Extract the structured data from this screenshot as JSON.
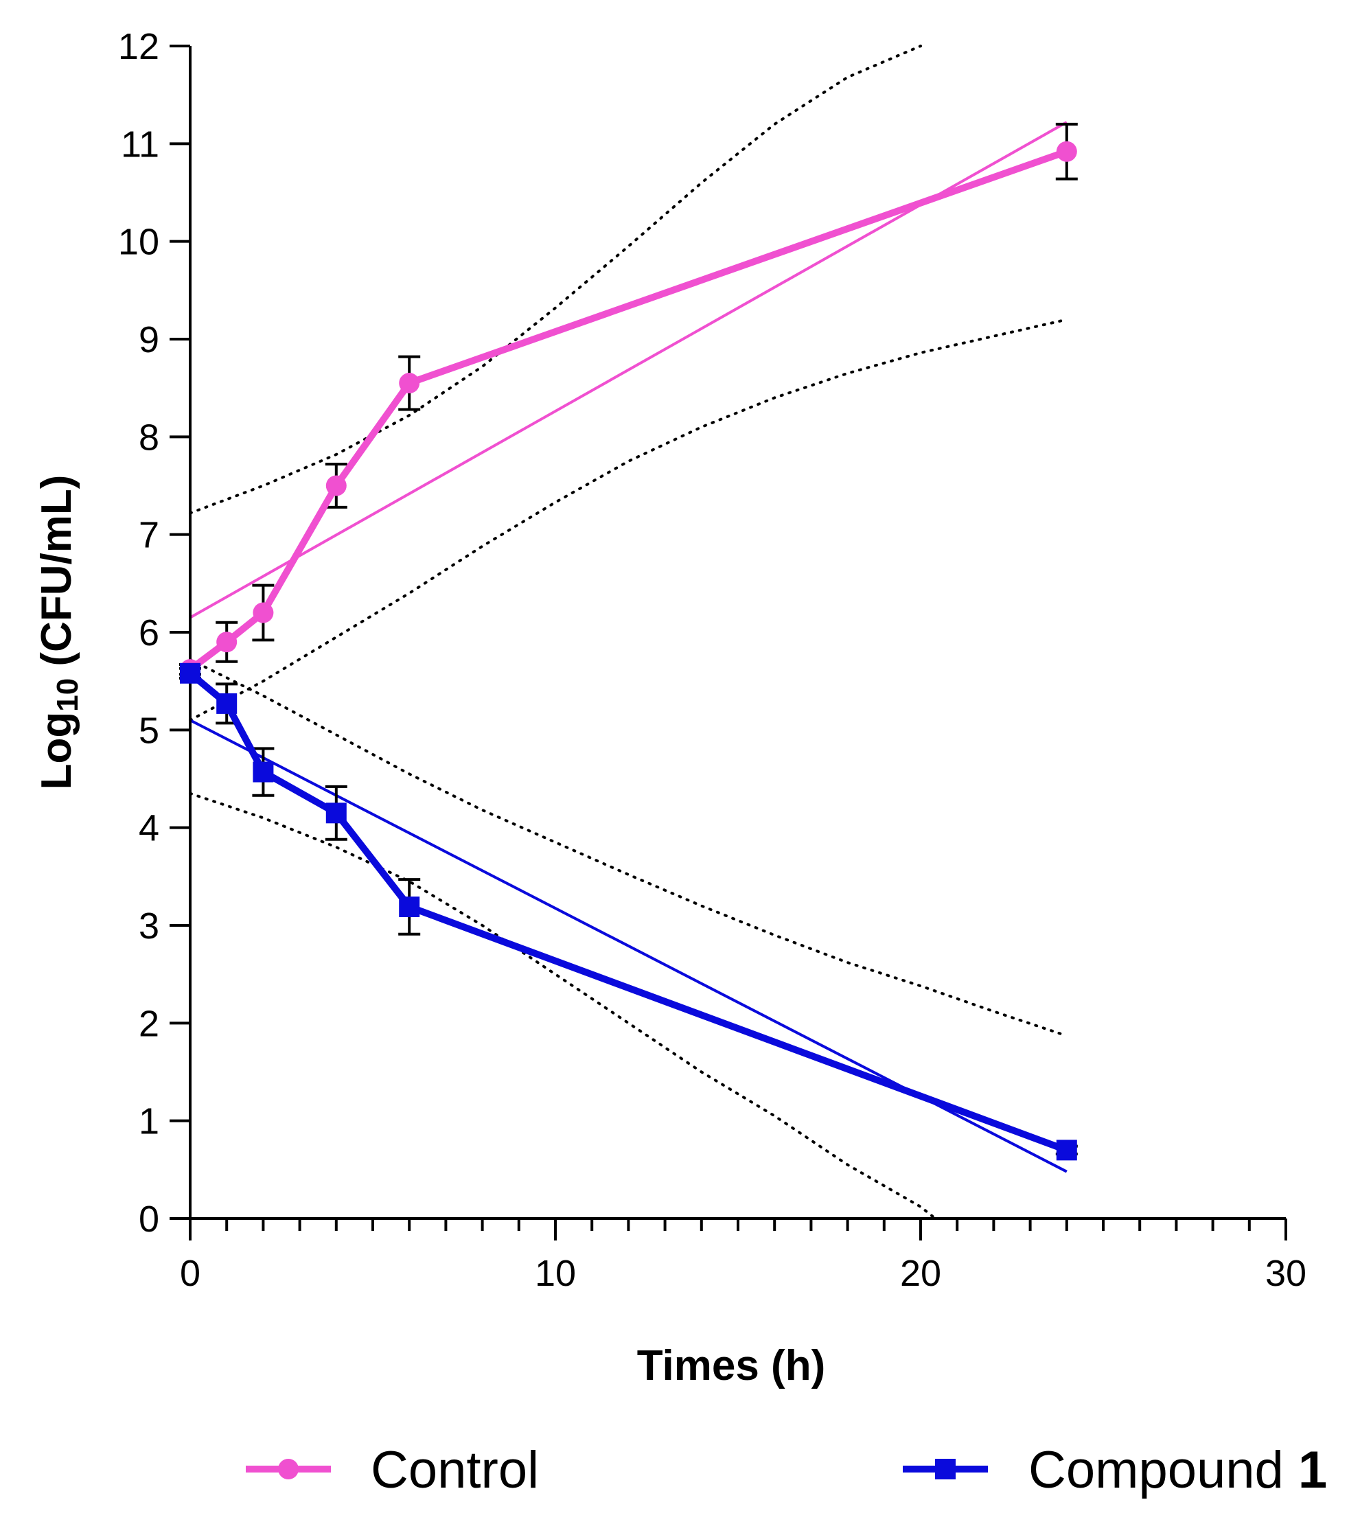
{
  "chart_data": {
    "type": "line",
    "title": "",
    "xlabel": "Times (h)",
    "ylabel_main": "Log",
    "ylabel_sub": "10",
    "ylabel_rest": " (CFU/mL)",
    "xlim": [
      0,
      30
    ],
    "ylim": [
      0,
      12
    ],
    "x_ticks": [
      0,
      10,
      20,
      30
    ],
    "x_minor_step": 1,
    "y_ticks": [
      0,
      1,
      2,
      3,
      4,
      5,
      6,
      7,
      8,
      9,
      10,
      11,
      12
    ],
    "grid": false,
    "legend_position": "bottom",
    "series": [
      {
        "name": "Control",
        "color": "#f050d0",
        "marker": "circle",
        "x": [
          0,
          1,
          2,
          4,
          6,
          24
        ],
        "y": [
          5.62,
          5.9,
          6.2,
          7.5,
          8.55,
          10.92
        ],
        "error": [
          0.05,
          0.2,
          0.28,
          0.22,
          0.27,
          0.28
        ],
        "regression": {
          "x": [
            0,
            24
          ],
          "y": [
            6.15,
            11.22
          ]
        },
        "confidence_band": {
          "upper": {
            "x": [
              0,
              2,
              4,
              6,
              8,
              10,
              12,
              14,
              16,
              18,
              20
            ],
            "y": [
              7.22,
              7.5,
              7.82,
              8.22,
              8.72,
              9.32,
              9.95,
              10.6,
              11.2,
              11.68,
              12.0
            ]
          },
          "lower": {
            "x": [
              0,
              2,
              4,
              6,
              8,
              10,
              12,
              14,
              16,
              18,
              20,
              22,
              24
            ],
            "y": [
              5.1,
              5.5,
              5.95,
              6.4,
              6.88,
              7.33,
              7.75,
              8.1,
              8.4,
              8.65,
              8.86,
              9.03,
              9.2
            ]
          }
        }
      },
      {
        "name": "Compound 1",
        "name_main": "Compound ",
        "name_bold": "1",
        "color": "#0a0adc",
        "marker": "square",
        "x": [
          0,
          1,
          2,
          4,
          6,
          24
        ],
        "y": [
          5.58,
          5.27,
          4.57,
          4.15,
          3.19,
          0.7
        ],
        "error": [
          0.05,
          0.2,
          0.24,
          0.27,
          0.28,
          0.04
        ],
        "regression": {
          "x": [
            0,
            24
          ],
          "y": [
            5.1,
            0.48
          ]
        },
        "confidence_band": {
          "upper": {
            "x": [
              0,
              2,
              4,
              6,
              8,
              10,
              12,
              14,
              16,
              18,
              20,
              22,
              24
            ],
            "y": [
              5.72,
              5.35,
              4.95,
              4.55,
              4.18,
              3.85,
              3.52,
              3.2,
              2.9,
              2.62,
              2.38,
              2.12,
              1.87
            ]
          },
          "lower": {
            "x": [
              0,
              2,
              4,
              6,
              8,
              10,
              12,
              14,
              16,
              18,
              20,
              20.4
            ],
            "y": [
              4.35,
              4.1,
              3.8,
              3.45,
              3.0,
              2.5,
              2.0,
              1.5,
              1.05,
              0.55,
              0.12,
              0.0
            ]
          }
        }
      }
    ]
  }
}
